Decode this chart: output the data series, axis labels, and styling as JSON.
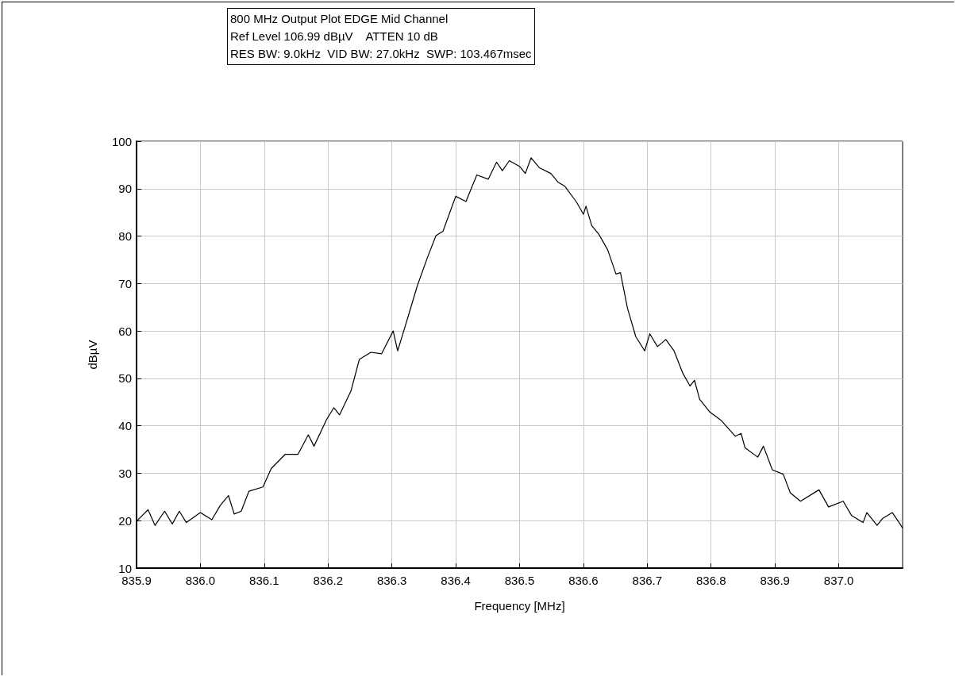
{
  "chart_data": {
    "type": "line",
    "title": "800 MHz Output Plot EDGE Mid Channel",
    "subtitle": "Ref Level 106.99 dBµV    ATTEN 10 dB",
    "annotations": [
      "RES BW: 9.0kHz  VID BW: 27.0kHz  SWP: 103.467msec"
    ],
    "xlabel": "Frequency [MHz]",
    "ylabel": "dBµV",
    "xlim": [
      835.9,
      837.1
    ],
    "xticks": [
      835.9,
      {
        "value": 836.0,
        "label": "836.0"
      },
      836.1,
      836.2,
      836.3,
      836.4,
      836.5,
      836.6,
      836.7,
      836.8,
      836.9,
      {
        "value": 837.0,
        "label": "837.0"
      }
    ],
    "ylim": [
      10,
      100
    ],
    "yticks": [
      10,
      20,
      30,
      40,
      50,
      60,
      70,
      80,
      90,
      100
    ],
    "grid": true,
    "marker": "none",
    "line_style": "solid",
    "series": [
      {
        "color": "#000000",
        "x": [
          835.9,
          835.918,
          835.929,
          835.944,
          835.956,
          835.967,
          835.978,
          836.0,
          836.018,
          836.031,
          836.044,
          836.053,
          836.064,
          836.076,
          836.098,
          836.111,
          836.133,
          836.153,
          836.169,
          836.178,
          836.198,
          836.209,
          836.218,
          836.236,
          836.249,
          836.267,
          836.284,
          836.302,
          836.309,
          836.324,
          836.34,
          836.356,
          836.369,
          836.38,
          836.4,
          836.416,
          836.433,
          836.451,
          836.464,
          836.473,
          836.484,
          836.5,
          836.509,
          836.518,
          836.531,
          836.549,
          836.56,
          836.571,
          836.589,
          836.6,
          836.604,
          836.613,
          836.624,
          836.638,
          836.651,
          836.658,
          836.669,
          836.682,
          836.696,
          836.704,
          836.716,
          836.729,
          836.742,
          836.756,
          836.767,
          836.774,
          836.782,
          836.798,
          836.816,
          836.838,
          836.847,
          836.853,
          836.873,
          836.882,
          836.896,
          836.913,
          836.924,
          836.94,
          836.969,
          836.984,
          837.007,
          837.02,
          837.038,
          837.044,
          837.06,
          837.069,
          837.084,
          837.096,
          837.1
        ],
        "values": [
          19.9,
          22.3,
          19.0,
          22.0,
          19.3,
          22.0,
          19.6,
          21.7,
          20.2,
          23.2,
          25.3,
          21.4,
          22.0,
          26.2,
          27.1,
          31.0,
          34.0,
          34.0,
          38.1,
          35.7,
          41.4,
          43.8,
          42.3,
          47.4,
          54.0,
          55.5,
          55.2,
          60.0,
          55.8,
          62.4,
          69.6,
          75.6,
          80.1,
          81.0,
          88.4,
          87.3,
          92.9,
          92.0,
          95.6,
          93.8,
          95.9,
          94.7,
          93.2,
          96.5,
          94.4,
          93.2,
          91.4,
          90.5,
          87.2,
          84.6,
          86.3,
          82.2,
          80.4,
          77.1,
          72.0,
          72.3,
          64.8,
          58.8,
          55.8,
          59.4,
          56.7,
          58.2,
          55.8,
          51.0,
          48.4,
          49.6,
          45.6,
          42.9,
          41.1,
          37.8,
          38.4,
          35.4,
          33.4,
          35.7,
          30.7,
          29.8,
          25.9,
          24.1,
          26.5,
          22.9,
          24.1,
          21.1,
          19.6,
          21.7,
          19.0,
          20.5,
          21.7,
          19.3,
          18.4
        ]
      }
    ]
  }
}
